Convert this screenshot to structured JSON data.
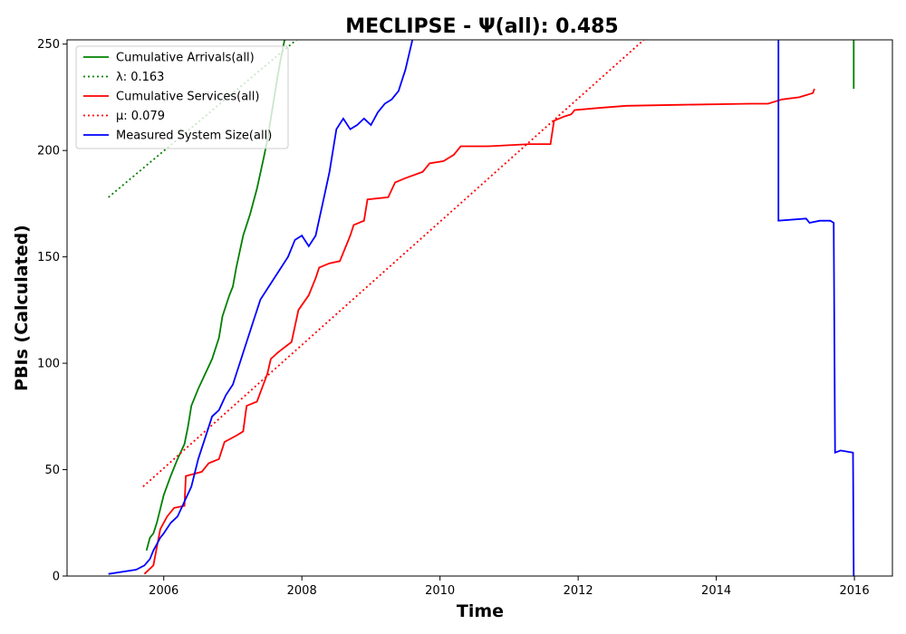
{
  "chart_data": {
    "type": "line",
    "title": "MECLIPSE -  Ψ(all): 0.485",
    "xlabel": "Time",
    "ylabel": "PBIs (Calculated)",
    "xlim": [
      2004.6,
      2016.55
    ],
    "ylim": [
      0,
      252
    ],
    "x_ticks": [
      2006,
      2008,
      2010,
      2012,
      2014,
      2016
    ],
    "y_ticks": [
      0,
      50,
      100,
      150,
      200,
      250
    ],
    "grid": false,
    "legend_position": "top-left",
    "series": [
      {
        "name": "Cumulative Arrivals(all)",
        "style": "solid",
        "color": "#008000",
        "points": [
          [
            2005.75,
            12
          ],
          [
            2005.8,
            18
          ],
          [
            2005.85,
            20
          ],
          [
            2005.9,
            25
          ],
          [
            2006.0,
            38
          ],
          [
            2006.1,
            47
          ],
          [
            2006.2,
            55
          ],
          [
            2006.3,
            62
          ],
          [
            2006.35,
            70
          ],
          [
            2006.4,
            80
          ],
          [
            2006.5,
            88
          ],
          [
            2006.6,
            95
          ],
          [
            2006.7,
            102
          ],
          [
            2006.8,
            112
          ],
          [
            2006.85,
            122
          ],
          [
            2006.95,
            132
          ],
          [
            2007.0,
            136
          ],
          [
            2007.05,
            145
          ],
          [
            2007.15,
            160
          ],
          [
            2007.25,
            170
          ],
          [
            2007.35,
            182
          ],
          [
            2007.45,
            197
          ],
          [
            2007.5,
            205
          ],
          [
            2007.55,
            215
          ],
          [
            2007.6,
            225
          ],
          [
            2007.65,
            235
          ],
          [
            2007.7,
            244
          ],
          [
            2007.75,
            252
          ]
        ],
        "end_segment": [
          [
            2015.99,
            252
          ],
          [
            2015.99,
            229
          ]
        ]
      },
      {
        "name": "λ: 0.163",
        "style": "dotted",
        "color": "#008000",
        "points": [
          [
            2005.2,
            178
          ],
          [
            2007.92,
            252
          ]
        ]
      },
      {
        "name": "Cumulative Services(all)",
        "style": "solid",
        "color": "#ff0000",
        "points": [
          [
            2005.72,
            1
          ],
          [
            2005.85,
            5
          ],
          [
            2005.95,
            22
          ],
          [
            2006.05,
            28
          ],
          [
            2006.15,
            32
          ],
          [
            2006.3,
            33
          ],
          [
            2006.32,
            47
          ],
          [
            2006.55,
            49
          ],
          [
            2006.65,
            53
          ],
          [
            2006.8,
            55
          ],
          [
            2006.88,
            63
          ],
          [
            2007.05,
            66
          ],
          [
            2007.15,
            68
          ],
          [
            2007.2,
            80
          ],
          [
            2007.35,
            82
          ],
          [
            2007.5,
            95
          ],
          [
            2007.55,
            102
          ],
          [
            2007.65,
            105
          ],
          [
            2007.85,
            110
          ],
          [
            2007.95,
            125
          ],
          [
            2008.1,
            132
          ],
          [
            2008.2,
            140
          ],
          [
            2008.25,
            145
          ],
          [
            2008.4,
            147
          ],
          [
            2008.55,
            148
          ],
          [
            2008.7,
            160
          ],
          [
            2008.75,
            165
          ],
          [
            2008.9,
            167
          ],
          [
            2008.95,
            177
          ],
          [
            2009.25,
            178
          ],
          [
            2009.35,
            185
          ],
          [
            2009.5,
            187
          ],
          [
            2009.75,
            190
          ],
          [
            2009.85,
            194
          ],
          [
            2010.05,
            195
          ],
          [
            2010.2,
            198
          ],
          [
            2010.3,
            202
          ],
          [
            2010.7,
            202
          ],
          [
            2011.3,
            203
          ],
          [
            2011.6,
            203
          ],
          [
            2011.65,
            214
          ],
          [
            2011.8,
            216
          ],
          [
            2011.9,
            217
          ],
          [
            2011.95,
            219
          ],
          [
            2012.3,
            220
          ],
          [
            2012.7,
            221
          ],
          [
            2013.5,
            221.5
          ],
          [
            2014.5,
            222
          ],
          [
            2014.75,
            222
          ],
          [
            2014.95,
            224
          ],
          [
            2015.2,
            225
          ],
          [
            2015.4,
            227
          ],
          [
            2015.42,
            229
          ]
        ]
      },
      {
        "name": "μ: 0.079",
        "style": "dotted",
        "color": "#ff0000",
        "points": [
          [
            2005.7,
            42
          ],
          [
            2012.95,
            252
          ]
        ]
      },
      {
        "name": "Measured System Size(all)",
        "style": "solid",
        "color": "#0000ff",
        "points": [
          [
            2005.2,
            1
          ],
          [
            2005.6,
            3
          ],
          [
            2005.72,
            5
          ],
          [
            2005.8,
            8
          ],
          [
            2005.85,
            12
          ],
          [
            2005.9,
            15
          ],
          [
            2005.95,
            18
          ],
          [
            2006.0,
            20
          ],
          [
            2006.1,
            25
          ],
          [
            2006.2,
            28
          ],
          [
            2006.3,
            35
          ],
          [
            2006.4,
            42
          ],
          [
            2006.5,
            55
          ],
          [
            2006.6,
            65
          ],
          [
            2006.7,
            75
          ],
          [
            2006.8,
            78
          ],
          [
            2006.9,
            85
          ],
          [
            2007.0,
            90
          ],
          [
            2007.1,
            100
          ],
          [
            2007.2,
            110
          ],
          [
            2007.3,
            120
          ],
          [
            2007.4,
            130
          ],
          [
            2007.5,
            135
          ],
          [
            2007.6,
            140
          ],
          [
            2007.7,
            145
          ],
          [
            2007.8,
            150
          ],
          [
            2007.9,
            158
          ],
          [
            2008.0,
            160
          ],
          [
            2008.1,
            155
          ],
          [
            2008.2,
            160
          ],
          [
            2008.3,
            175
          ],
          [
            2008.4,
            190
          ],
          [
            2008.5,
            210
          ],
          [
            2008.6,
            215
          ],
          [
            2008.7,
            210
          ],
          [
            2008.8,
            212
          ],
          [
            2008.9,
            215
          ],
          [
            2009.0,
            212
          ],
          [
            2009.1,
            218
          ],
          [
            2009.2,
            222
          ],
          [
            2009.3,
            224
          ],
          [
            2009.4,
            228
          ],
          [
            2009.5,
            238
          ],
          [
            2009.6,
            252
          ]
        ],
        "end_segment": [
          [
            2014.9,
            252
          ],
          [
            2014.9,
            167
          ],
          [
            2015.3,
            168
          ],
          [
            2015.35,
            166
          ],
          [
            2015.5,
            167
          ],
          [
            2015.65,
            167
          ],
          [
            2015.7,
            166
          ],
          [
            2015.72,
            58
          ],
          [
            2015.8,
            59
          ],
          [
            2015.98,
            58
          ],
          [
            2015.99,
            0
          ]
        ]
      }
    ]
  }
}
